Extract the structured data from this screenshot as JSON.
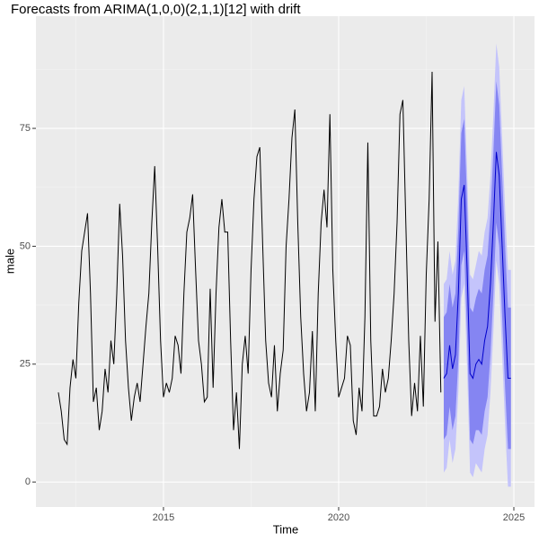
{
  "chart_data": {
    "type": "forecast",
    "title": "Forecasts from ARIMA(1,0,0)(2,1,1)[12] with drift",
    "x_label": "Time",
    "y_label": "male",
    "xlim": [
      2011.36,
      2025.59
    ],
    "ylim": [
      -5.3,
      98.8
    ],
    "xticks": [
      2015,
      2020,
      2025
    ],
    "yticks": [
      0,
      25,
      50,
      75
    ],
    "grid": true,
    "series": [
      {
        "color": "#000000",
        "x": [
          2012,
          2012.083,
          2012.167,
          2012.25,
          2012.333,
          2012.417,
          2012.5,
          2012.583,
          2012.667,
          2012.75,
          2012.833,
          2012.917,
          2013,
          2013.083,
          2013.167,
          2013.25,
          2013.333,
          2013.417,
          2013.5,
          2013.583,
          2013.667,
          2013.75,
          2013.833,
          2013.917,
          2014,
          2014.083,
          2014.167,
          2014.25,
          2014.333,
          2014.417,
          2014.5,
          2014.583,
          2014.667,
          2014.75,
          2014.833,
          2014.917,
          2015,
          2015.083,
          2015.167,
          2015.25,
          2015.333,
          2015.417,
          2015.5,
          2015.583,
          2015.667,
          2015.75,
          2015.833,
          2015.917,
          2016,
          2016.083,
          2016.167,
          2016.25,
          2016.333,
          2016.417,
          2016.5,
          2016.583,
          2016.667,
          2016.75,
          2016.833,
          2016.917,
          2017,
          2017.083,
          2017.167,
          2017.25,
          2017.333,
          2017.417,
          2017.5,
          2017.583,
          2017.667,
          2017.75,
          2017.833,
          2017.917,
          2018,
          2018.083,
          2018.167,
          2018.25,
          2018.333,
          2018.417,
          2018.5,
          2018.583,
          2018.667,
          2018.75,
          2018.833,
          2018.917,
          2019,
          2019.083,
          2019.167,
          2019.25,
          2019.333,
          2019.417,
          2019.5,
          2019.583,
          2019.667,
          2019.75,
          2019.833,
          2019.917,
          2020,
          2020.083,
          2020.167,
          2020.25,
          2020.333,
          2020.417,
          2020.5,
          2020.583,
          2020.667,
          2020.75,
          2020.833,
          2020.917,
          2021,
          2021.083,
          2021.167,
          2021.25,
          2021.333,
          2021.417,
          2021.5,
          2021.583,
          2021.667,
          2021.75,
          2021.833,
          2021.917,
          2022,
          2022.083,
          2022.167,
          2022.25,
          2022.333,
          2022.417,
          2022.5,
          2022.583,
          2022.667,
          2022.75,
          2022.833,
          2022.917
        ],
        "values": [
          19,
          15,
          9,
          8,
          20,
          26,
          22,
          38,
          49,
          53,
          57,
          40,
          17,
          20,
          11,
          15,
          24,
          19,
          30,
          25,
          40,
          59,
          48,
          30,
          20,
          13,
          18,
          21,
          17,
          25,
          33,
          40,
          55,
          67,
          50,
          30,
          18,
          21,
          19,
          22,
          31,
          29,
          23,
          40,
          53,
          56,
          61,
          45,
          30,
          25,
          17,
          18,
          41,
          20,
          40,
          54,
          60,
          53,
          53,
          30,
          11,
          19,
          7,
          25,
          31,
          23,
          45,
          60,
          69,
          71,
          50,
          30,
          21,
          18,
          29,
          15,
          23,
          28,
          50,
          60,
          73,
          79,
          55,
          35,
          23,
          15,
          19,
          32,
          15,
          40,
          55,
          62,
          54,
          78,
          45,
          30,
          18,
          20,
          22,
          31,
          29,
          13,
          10,
          20,
          15,
          35,
          72,
          30,
          14,
          14,
          16,
          24,
          19,
          22,
          30,
          40,
          55,
          78,
          81,
          55,
          30,
          14,
          21,
          15,
          31,
          16,
          44,
          60,
          87,
          34,
          51,
          19
        ]
      },
      {
        "color": "#0000cc",
        "color80": "#8585f2",
        "color95": "#c4c4fb",
        "x": [
          2023,
          2023.083,
          2023.167,
          2023.25,
          2023.333,
          2023.417,
          2023.5,
          2023.583,
          2023.667,
          2023.75,
          2023.833,
          2023.917,
          2024,
          2024.083,
          2024.167,
          2024.25,
          2024.333,
          2024.417,
          2024.5,
          2024.583,
          2024.667,
          2024.75,
          2024.833,
          2024.917
        ],
        "values": [
          22,
          23,
          29,
          24,
          27,
          40,
          60,
          63,
          45,
          23,
          22,
          25,
          26,
          25,
          30,
          33,
          42,
          55,
          70,
          65,
          50,
          35,
          22,
          22
        ],
        "lo80": [
          9,
          10,
          16,
          11,
          14,
          26,
          46,
          49,
          31,
          9,
          8,
          11,
          11,
          10,
          15,
          18,
          27,
          40,
          55,
          50,
          35,
          20,
          7,
          7
        ],
        "hi80": [
          35,
          36,
          42,
          37,
          40,
          54,
          74,
          77,
          59,
          37,
          36,
          39,
          41,
          40,
          45,
          48,
          57,
          70,
          85,
          80,
          65,
          50,
          37,
          37
        ],
        "lo95": [
          2,
          3,
          9,
          4,
          7,
          19,
          39,
          42,
          24,
          2,
          1,
          4,
          3,
          2,
          7,
          10,
          19,
          32,
          47,
          42,
          27,
          12,
          -1,
          -1
        ],
        "hi95": [
          42,
          43,
          49,
          44,
          47,
          61,
          81,
          84,
          66,
          44,
          43,
          46,
          49,
          48,
          53,
          56,
          65,
          78,
          93,
          88,
          73,
          58,
          45,
          45
        ]
      }
    ]
  }
}
